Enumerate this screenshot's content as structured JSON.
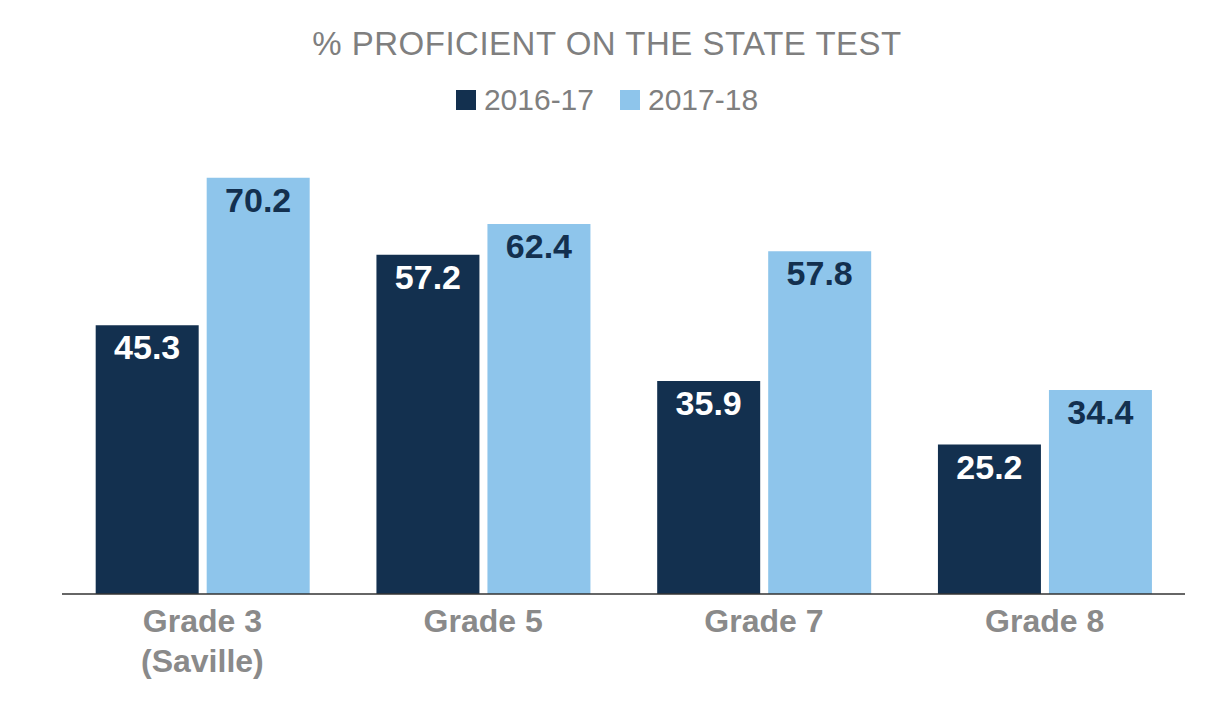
{
  "chart_data": {
    "type": "bar",
    "title": "% PROFICIENT ON THE STATE TEST",
    "categories": [
      "Grade 3 (Saville)",
      "Grade 5",
      "Grade 7",
      "Grade 8"
    ],
    "series": [
      {
        "name": "2016-17",
        "color": "#13304f",
        "values": [
          45.3,
          57.2,
          35.9,
          25.2
        ]
      },
      {
        "name": "2017-18",
        "color": "#8ec5eb",
        "values": [
          70.2,
          62.4,
          57.8,
          34.4
        ]
      }
    ],
    "ylim": [
      0,
      72
    ],
    "data_labels": true,
    "tick_labels": "x",
    "legend": "top"
  }
}
